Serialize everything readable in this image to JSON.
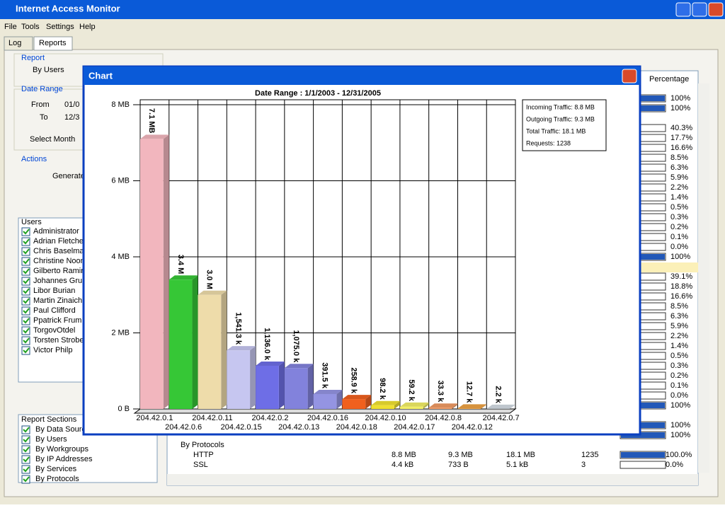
{
  "window": {
    "title": "Internet Access Monitor",
    "menu": [
      "File",
      "Tools",
      "Settings",
      "Help"
    ],
    "tabs": [
      "Log",
      "Reports"
    ]
  },
  "left": {
    "report_label": "Report",
    "report_value": "By Users",
    "date_range_label": "Date Range",
    "from_label": "From",
    "from_value": "01/0",
    "to_label": "To",
    "to_value": "12/3",
    "select_month": "Select Month",
    "actions_label": "Actions",
    "generate": "Generate",
    "users_header": "Users",
    "users": [
      "Administrator",
      "Adrian Fletcher",
      "Chris Baselman",
      "Christine Noon",
      "Gilberto Ramire",
      "Johannes Grun",
      "Libor Burian",
      "Martin Zinaich",
      "Paul Clifford",
      "Ppatrick Frum",
      "TorgovOtdel",
      "Torsten Strobe",
      "Victor Philp"
    ],
    "sections_header": "Report Sections",
    "sections": [
      "By Data Sourc",
      "By Users",
      "By Workgroups",
      "By IP Addresses",
      "By Services",
      "By Protocols"
    ]
  },
  "table": {
    "percentage_header": "Percentage",
    "percentages": [
      "100%",
      "100%",
      "40.3%",
      "17.7%",
      "16.6%",
      "8.5%",
      "6.3%",
      "5.9%",
      "2.2%",
      "1.4%",
      "0.5%",
      "0.3%",
      "0.2%",
      "0.1%",
      "0.0%",
      "100%",
      "39.1%",
      "18.8%",
      "16.6%",
      "8.5%",
      "6.3%",
      "5.9%",
      "2.2%",
      "1.4%",
      "0.5%",
      "0.3%",
      "0.2%",
      "0.1%",
      "0.0%",
      "100%",
      "100%",
      "100%"
    ],
    "group": "By Protocols",
    "rows": [
      [
        "HTTP",
        "8.8 MB",
        "9.3 MB",
        "18.1 MB",
        "1235",
        "100.0%"
      ],
      [
        "SSL",
        "4.4 kB",
        "733 B",
        "5.1 kB",
        "3",
        "0.0%"
      ]
    ]
  },
  "dialog": {
    "title": "Chart",
    "info": [
      "Incoming Traffic: 8.8 MB",
      "Outgoing Traffic: 9.3 MB",
      "Total Traffic: 18.1 MB",
      "Requests: 1238"
    ]
  },
  "chart_data": {
    "type": "bar",
    "title": "Date Range : 1/1/2003  -  12/31/2005",
    "categories": [
      "204.42.0.1",
      "204.42.0.6",
      "204.42.0.11",
      "204.42.0.15",
      "204.42.0.2",
      "204.42.0.13",
      "204.42.0.16",
      "204.42.0.18",
      "204.42.0.10",
      "204.42.0.17",
      "204.42.0.8",
      "204.42.0.12",
      "204.42.0.7"
    ],
    "values": [
      7.1,
      3.4,
      3.0,
      1.5413,
      1.136,
      1.075,
      0.3915,
      0.2589,
      0.0982,
      0.0592,
      0.0333,
      0.0127,
      0.0022
    ],
    "value_labels": [
      "7.1 MB",
      "3.4 M",
      "3.0 M",
      "1,541.3 k",
      "1,136.0 k",
      "1,075.0 k",
      "391.5 k",
      "258.9 k",
      "98.2 k",
      "59.2 k",
      "33.3 k",
      "12.7 k",
      "2.2 k"
    ],
    "colors": [
      "#f2b6be",
      "#36c736",
      "#eedcaa",
      "#c6c6f0",
      "#6e6ee6",
      "#8282dc",
      "#9494e2",
      "#f0601e",
      "#efe030",
      "#f2ee66",
      "#f09a64",
      "#eea244",
      "#d4dce4"
    ],
    "ylim": [
      0,
      8
    ],
    "yticks": [
      {
        "value": 0,
        "label": "0 B"
      },
      {
        "value": 2,
        "label": "2 MB"
      },
      {
        "value": 4,
        "label": "4 MB"
      },
      {
        "value": 6,
        "label": "6 MB"
      },
      {
        "value": 8,
        "label": "8 MB"
      }
    ],
    "grid": true
  }
}
